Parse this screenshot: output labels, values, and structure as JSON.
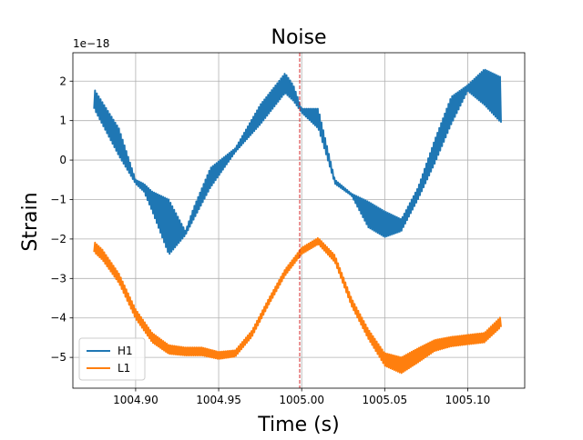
{
  "chart_data": {
    "type": "line",
    "title": "Noise",
    "xlabel": "Time (s)",
    "ylabel": "Strain",
    "y_scale_label": "1e−18",
    "xlim": [
      1004.8622,
      1005.1343
    ],
    "ylim": [
      -5.78,
      2.72
    ],
    "x_ticks": [
      1004.9,
      1004.95,
      1005.0,
      1005.05,
      1005.1
    ],
    "x_tick_labels": [
      "1004.90",
      "1004.95",
      "1005.00",
      "1005.05",
      "1005.10"
    ],
    "y_ticks": [
      -5,
      -4,
      -3,
      -2,
      -1,
      0,
      1,
      2
    ],
    "y_tick_labels": [
      "−5",
      "−4",
      "−3",
      "−2",
      "−1",
      "0",
      "1",
      "2"
    ],
    "grid": true,
    "legend_position": "lower-left",
    "marker_line": {
      "x": 1004.9988,
      "color": "#d62728",
      "style": "dashed"
    },
    "series": [
      {
        "name": "H1",
        "color": "#1f77b4",
        "oscillation_frequency_hz": 900,
        "x": [
          1004.875,
          1004.89,
          1004.9,
          1004.905,
          1004.91,
          1004.92,
          1004.93,
          1004.935,
          1004.945,
          1004.96,
          1004.975,
          1004.99,
          1004.995,
          1005.0,
          1005.01,
          1005.02,
          1005.03,
          1005.04,
          1005.05,
          1005.06,
          1005.07,
          1005.08,
          1005.09,
          1005.1,
          1005.11,
          1005.12
        ],
        "y_low": [
          1.3,
          0.1,
          -0.6,
          -0.8,
          -1.3,
          -2.4,
          -1.9,
          -1.5,
          -0.7,
          0.2,
          0.9,
          1.7,
          1.5,
          1.2,
          0.8,
          -0.6,
          -0.9,
          -1.7,
          -1.95,
          -1.8,
          -1.0,
          -0.1,
          0.9,
          1.75,
          1.4,
          0.95
        ],
        "y_high": [
          1.8,
          0.8,
          -0.5,
          -0.6,
          -0.8,
          -1.0,
          -1.8,
          -1.2,
          -0.2,
          0.3,
          1.4,
          2.2,
          1.9,
          1.3,
          1.3,
          -0.5,
          -0.85,
          -1.05,
          -1.3,
          -1.5,
          -0.7,
          0.5,
          1.6,
          1.9,
          2.3,
          2.1
        ]
      },
      {
        "name": "L1",
        "color": "#ff7f0e",
        "oscillation_frequency_hz": 900,
        "x": [
          1004.875,
          1004.88,
          1004.89,
          1004.9,
          1004.91,
          1004.92,
          1004.93,
          1004.94,
          1004.95,
          1004.96,
          1004.97,
          1004.98,
          1004.99,
          1005.0,
          1005.01,
          1005.02,
          1005.03,
          1005.04,
          1005.05,
          1005.06,
          1005.07,
          1005.08,
          1005.09,
          1005.1,
          1005.11,
          1005.12
        ],
        "y": [
          -2.2,
          -2.4,
          -3.0,
          -3.9,
          -4.5,
          -4.8,
          -4.85,
          -4.85,
          -4.95,
          -4.9,
          -4.4,
          -3.6,
          -2.85,
          -2.3,
          -2.05,
          -2.5,
          -3.6,
          -4.4,
          -5.05,
          -5.2,
          -4.95,
          -4.7,
          -4.6,
          -4.55,
          -4.5,
          -4.1
        ],
        "amplitude": [
          0.13,
          0.13,
          0.12,
          0.12,
          0.12,
          0.11,
          0.1,
          0.1,
          0.09,
          0.08,
          0.08,
          0.08,
          0.08,
          0.08,
          0.08,
          0.09,
          0.1,
          0.12,
          0.16,
          0.2,
          0.18,
          0.14,
          0.12,
          0.12,
          0.12,
          0.13
        ]
      }
    ]
  }
}
